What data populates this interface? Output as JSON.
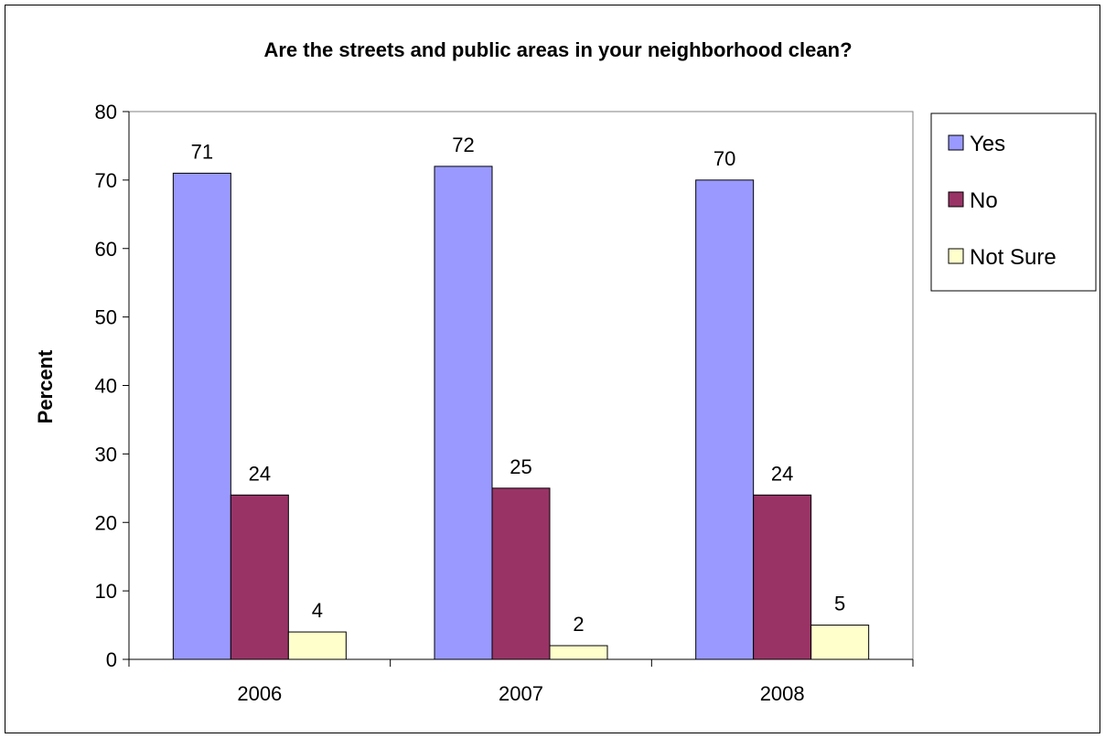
{
  "chart_data": {
    "type": "bar",
    "title": "Are the streets and public areas in your neighborhood clean?",
    "xlabel": "",
    "ylabel": "Percent",
    "categories": [
      "2006",
      "2007",
      "2008"
    ],
    "ylim": [
      0,
      80
    ],
    "yticks": [
      0,
      10,
      20,
      30,
      40,
      50,
      60,
      70,
      80
    ],
    "grid": false,
    "legend_position": "right",
    "series": [
      {
        "name": "Yes",
        "values": [
          71,
          72,
          70
        ],
        "color": "#9999ff"
      },
      {
        "name": "No",
        "values": [
          24,
          25,
          24
        ],
        "color": "#993366"
      },
      {
        "name": "Not Sure",
        "values": [
          4,
          2,
          5
        ],
        "color": "#ffffcc"
      }
    ]
  }
}
